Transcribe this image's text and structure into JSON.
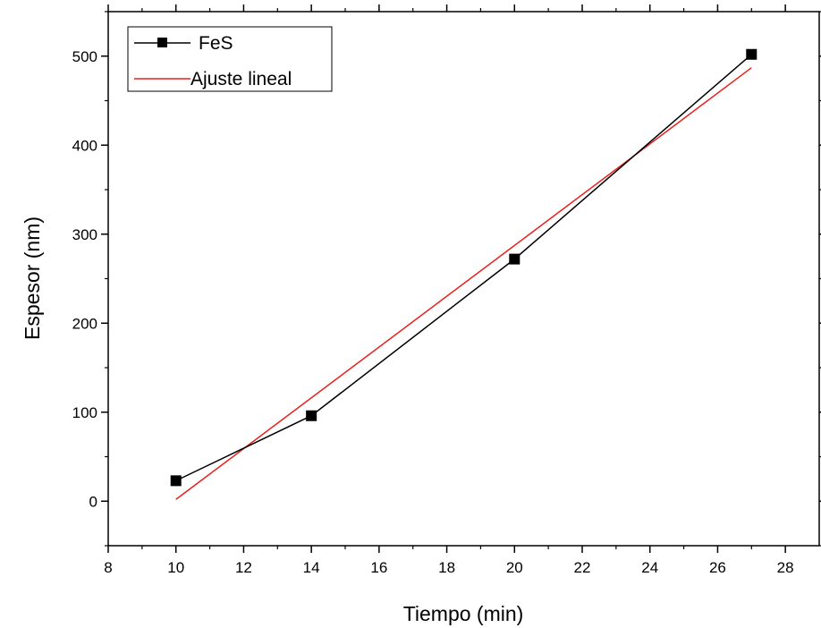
{
  "chart_data": {
    "type": "line",
    "xlabel": "Tiempo (min)",
    "ylabel": "Espesor (nm)",
    "xlim": [
      8,
      29
    ],
    "ylim": [
      -50,
      550
    ],
    "xticks": [
      8,
      10,
      12,
      14,
      16,
      18,
      20,
      22,
      24,
      26,
      28
    ],
    "yticks": [
      0,
      100,
      200,
      300,
      400,
      500
    ],
    "series": [
      {
        "name": "FeS",
        "style": "line+square-markers",
        "color": "#000000",
        "x": [
          10,
          14,
          20,
          27
        ],
        "y": [
          23,
          96,
          272,
          502
        ]
      },
      {
        "name": "Ajuste lineal",
        "style": "line",
        "color": "#e8201c",
        "x": [
          10,
          27
        ],
        "y": [
          2,
          487
        ]
      }
    ],
    "legend": "top-left",
    "grid": false
  }
}
